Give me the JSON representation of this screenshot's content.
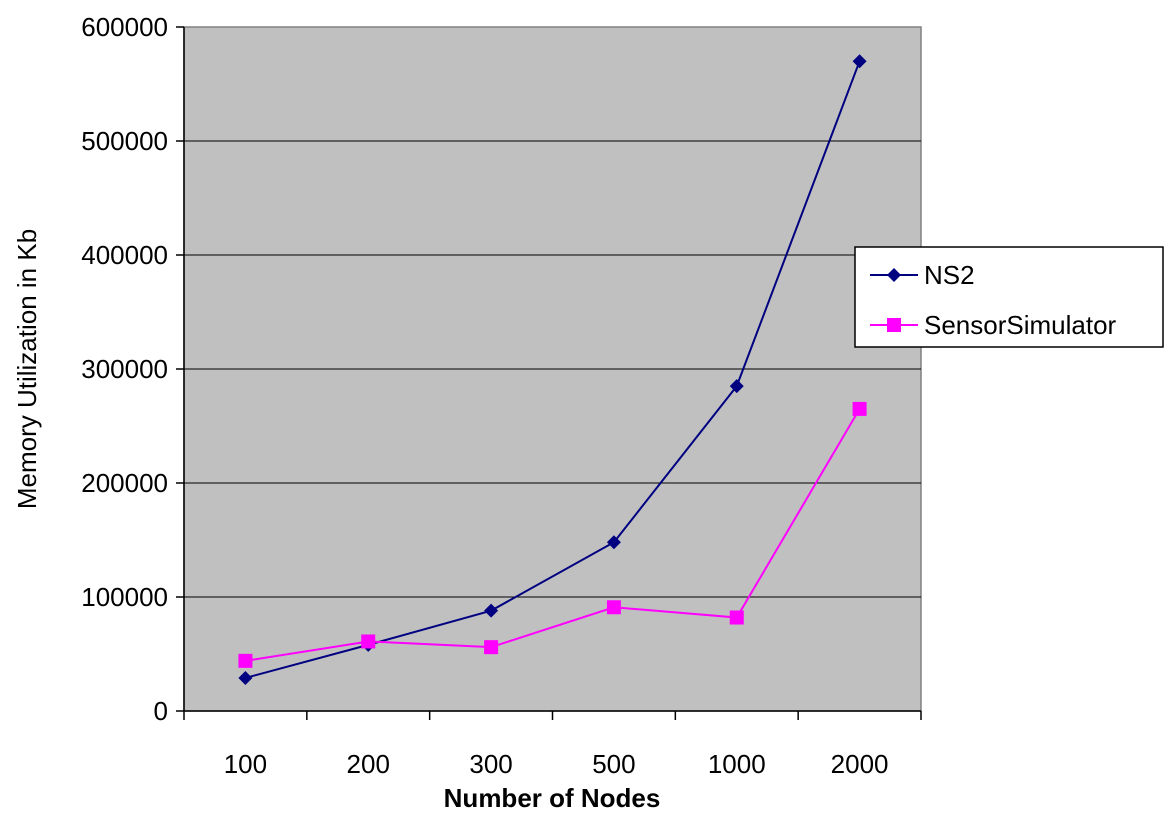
{
  "chart_data": {
    "type": "line",
    "categories": [
      "100",
      "200",
      "300",
      "500",
      "1000",
      "2000"
    ],
    "series": [
      {
        "name": "NS2",
        "values": [
          29000,
          58000,
          88000,
          148000,
          285000,
          570000
        ],
        "color": "#000080",
        "marker": "diamond"
      },
      {
        "name": "SensorSimulator",
        "values": [
          44000,
          61000,
          56000,
          91000,
          82000,
          265000
        ],
        "color": "#ff00ff",
        "marker": "square"
      }
    ],
    "xlabel": "Number of Nodes",
    "ylabel": "Memory Utilization in Kb",
    "ylim": [
      0,
      600000
    ],
    "yticks": [
      "0",
      "100000",
      "200000",
      "300000",
      "400000",
      "500000",
      "600000"
    ],
    "grid": true,
    "plot_background": "#c0c0c0",
    "legend_position": "right"
  }
}
